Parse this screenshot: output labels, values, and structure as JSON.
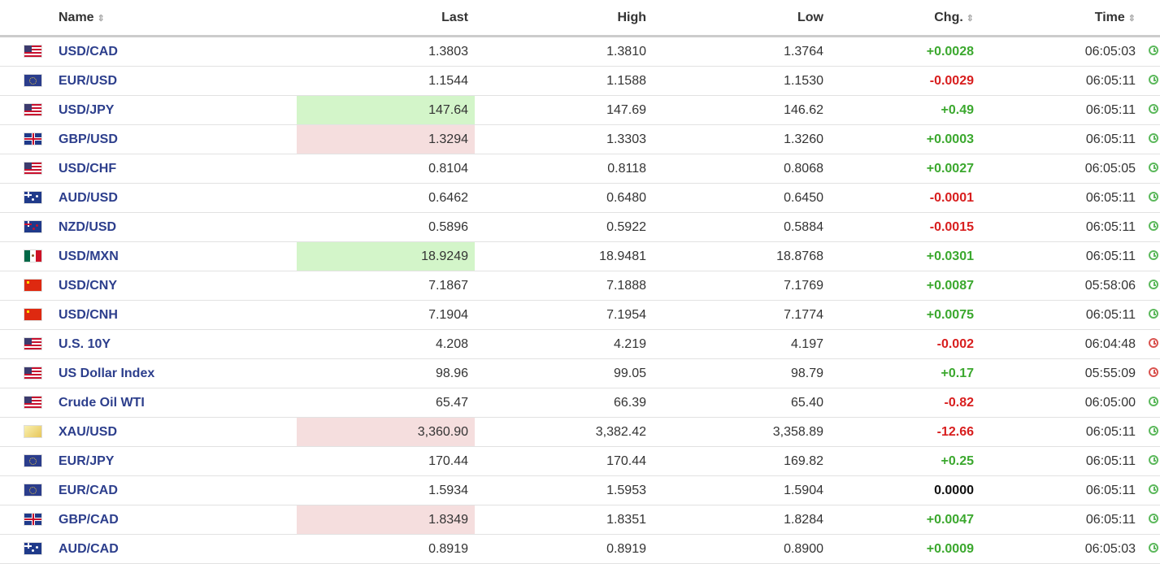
{
  "columns": {
    "name": "Name",
    "last": "Last",
    "high": "High",
    "low": "Low",
    "chg": "Chg.",
    "time": "Time"
  },
  "sort_icon": "⇕",
  "rows": [
    {
      "flag": "US",
      "name": "USD/CAD",
      "last": "1.3803",
      "high": "1.3810",
      "low": "1.3764",
      "chg": "+0.0028",
      "dir": "pos",
      "time": "06:05:03",
      "hl": "",
      "clock": "open"
    },
    {
      "flag": "EU",
      "name": "EUR/USD",
      "last": "1.1544",
      "high": "1.1588",
      "low": "1.1530",
      "chg": "-0.0029",
      "dir": "neg",
      "time": "06:05:11",
      "hl": "",
      "clock": "open"
    },
    {
      "flag": "US",
      "name": "USD/JPY",
      "last": "147.64",
      "high": "147.69",
      "low": "146.62",
      "chg": "+0.49",
      "dir": "pos",
      "time": "06:05:11",
      "hl": "up",
      "clock": "open"
    },
    {
      "flag": "GB",
      "name": "GBP/USD",
      "last": "1.3294",
      "high": "1.3303",
      "low": "1.3260",
      "chg": "+0.0003",
      "dir": "pos",
      "time": "06:05:11",
      "hl": "down",
      "clock": "open"
    },
    {
      "flag": "US",
      "name": "USD/CHF",
      "last": "0.8104",
      "high": "0.8118",
      "low": "0.8068",
      "chg": "+0.0027",
      "dir": "pos",
      "time": "06:05:05",
      "hl": "",
      "clock": "open"
    },
    {
      "flag": "AU",
      "name": "AUD/USD",
      "last": "0.6462",
      "high": "0.6480",
      "low": "0.6450",
      "chg": "-0.0001",
      "dir": "neg",
      "time": "06:05:11",
      "hl": "",
      "clock": "open"
    },
    {
      "flag": "NZ",
      "name": "NZD/USD",
      "last": "0.5896",
      "high": "0.5922",
      "low": "0.5884",
      "chg": "-0.0015",
      "dir": "neg",
      "time": "06:05:11",
      "hl": "",
      "clock": "open"
    },
    {
      "flag": "MX",
      "name": "USD/MXN",
      "last": "18.9249",
      "high": "18.9481",
      "low": "18.8768",
      "chg": "+0.0301",
      "dir": "pos",
      "time": "06:05:11",
      "hl": "up",
      "clock": "open"
    },
    {
      "flag": "CN",
      "name": "USD/CNY",
      "last": "7.1867",
      "high": "7.1888",
      "low": "7.1769",
      "chg": "+0.0087",
      "dir": "pos",
      "time": "05:58:06",
      "hl": "",
      "clock": "open"
    },
    {
      "flag": "CN",
      "name": "USD/CNH",
      "last": "7.1904",
      "high": "7.1954",
      "low": "7.1774",
      "chg": "+0.0075",
      "dir": "pos",
      "time": "06:05:11",
      "hl": "",
      "clock": "open"
    },
    {
      "flag": "US",
      "name": "U.S. 10Y",
      "last": "4.208",
      "high": "4.219",
      "low": "4.197",
      "chg": "-0.002",
      "dir": "neg",
      "time": "06:04:48",
      "hl": "",
      "clock": "closed"
    },
    {
      "flag": "US",
      "name": "US Dollar Index",
      "last": "98.96",
      "high": "99.05",
      "low": "98.79",
      "chg": "+0.17",
      "dir": "pos",
      "time": "05:55:09",
      "hl": "",
      "clock": "closed"
    },
    {
      "flag": "US",
      "name": "Crude Oil WTI",
      "last": "65.47",
      "high": "66.39",
      "low": "65.40",
      "chg": "-0.82",
      "dir": "neg",
      "time": "06:05:00",
      "hl": "",
      "clock": "open"
    },
    {
      "flag": "XAU",
      "name": "XAU/USD",
      "last": "3,360.90",
      "high": "3,382.42",
      "low": "3,358.89",
      "chg": "-12.66",
      "dir": "neg",
      "time": "06:05:11",
      "hl": "down",
      "clock": "open"
    },
    {
      "flag": "EU",
      "name": "EUR/JPY",
      "last": "170.44",
      "high": "170.44",
      "low": "169.82",
      "chg": "+0.25",
      "dir": "pos",
      "time": "06:05:11",
      "hl": "",
      "clock": "open"
    },
    {
      "flag": "EU",
      "name": "EUR/CAD",
      "last": "1.5934",
      "high": "1.5953",
      "low": "1.5904",
      "chg": "0.0000",
      "dir": "zero",
      "time": "06:05:11",
      "hl": "",
      "clock": "open"
    },
    {
      "flag": "GB",
      "name": "GBP/CAD",
      "last": "1.8349",
      "high": "1.8351",
      "low": "1.8284",
      "chg": "+0.0047",
      "dir": "pos",
      "time": "06:05:11",
      "hl": "down",
      "clock": "open"
    },
    {
      "flag": "AU",
      "name": "AUD/CAD",
      "last": "0.8919",
      "high": "0.8919",
      "low": "0.8900",
      "chg": "+0.0009",
      "dir": "pos",
      "time": "06:05:03",
      "hl": "",
      "clock": "open"
    }
  ]
}
